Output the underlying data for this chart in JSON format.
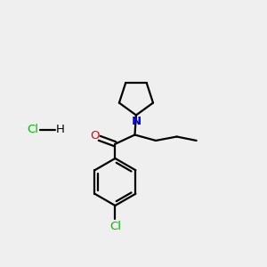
{
  "background_color": "#efefef",
  "bond_color": "#000000",
  "line_width": 1.6,
  "atom_colors": {
    "N": "#0000ee",
    "O": "#ee0000",
    "Cl_green": "#00bb00",
    "H": "#000000"
  },
  "font_size_atom": 9.5,
  "font_size_hcl": 9.5,
  "figsize": [
    3.0,
    3.0
  ],
  "dpi": 100
}
